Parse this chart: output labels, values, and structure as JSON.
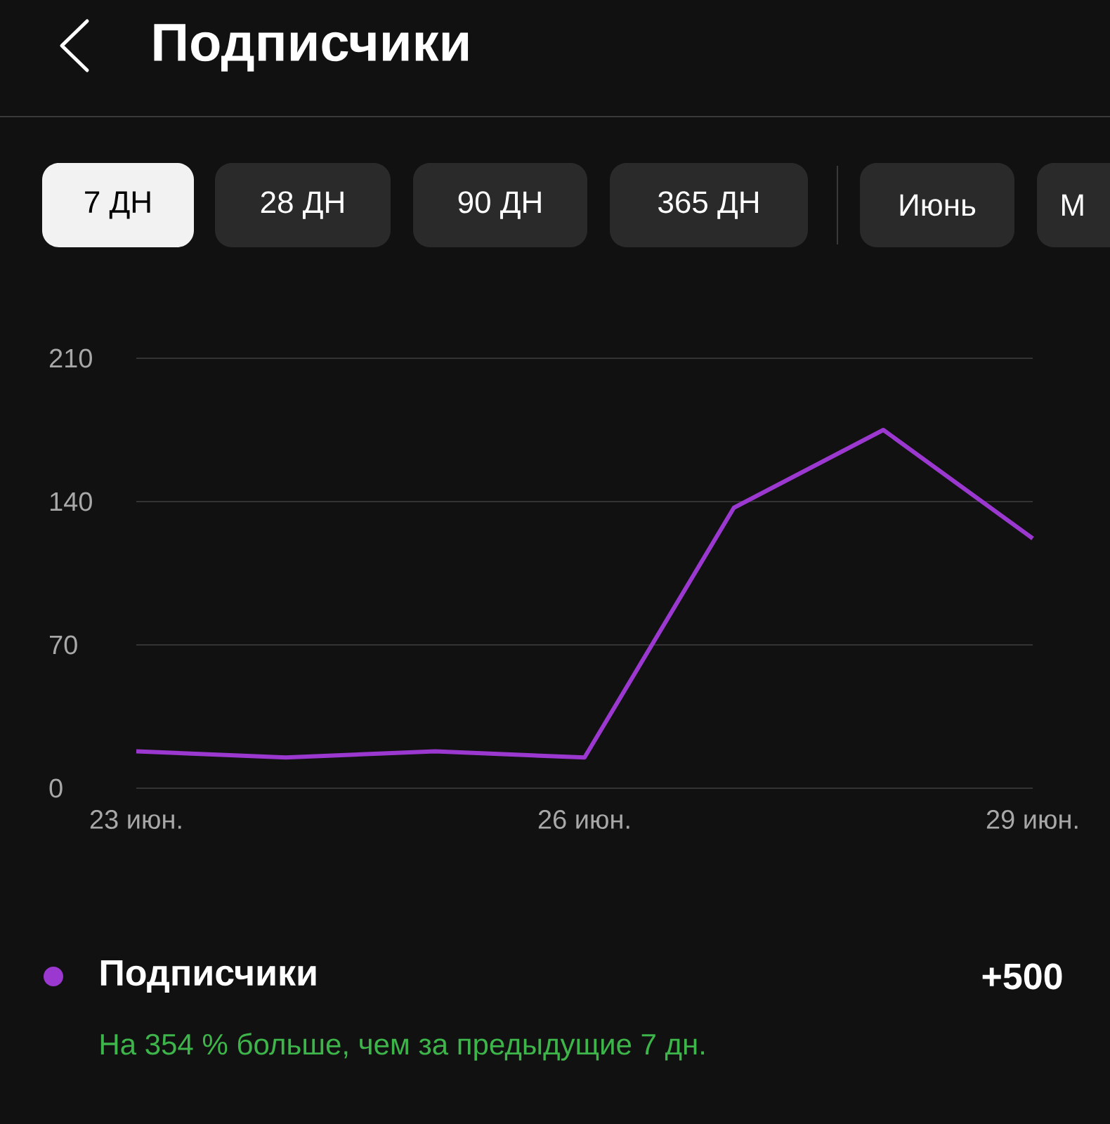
{
  "chart_data": {
    "type": "line",
    "title": "Подписчики",
    "categories": [
      "23 июн.",
      null,
      null,
      "26 июн.",
      null,
      null,
      "29 июн."
    ],
    "series": [
      {
        "name": "Подписчики",
        "color": "#9b38cf",
        "values": [
          18,
          15,
          18,
          15,
          137,
          175,
          122
        ]
      }
    ],
    "ylim": [
      0,
      210
    ],
    "yticks": [
      0,
      70,
      140,
      210
    ],
    "grid": "y",
    "legend": "bottom",
    "marker": "none",
    "line_style": "solid",
    "annotations": [
      "7 ДН",
      "28 ДН",
      "90 ДН",
      "365 ДН",
      "Июнь",
      "М",
      "+500",
      "На 354 % больше, чем за предыдущие 7 дн."
    ]
  }
}
